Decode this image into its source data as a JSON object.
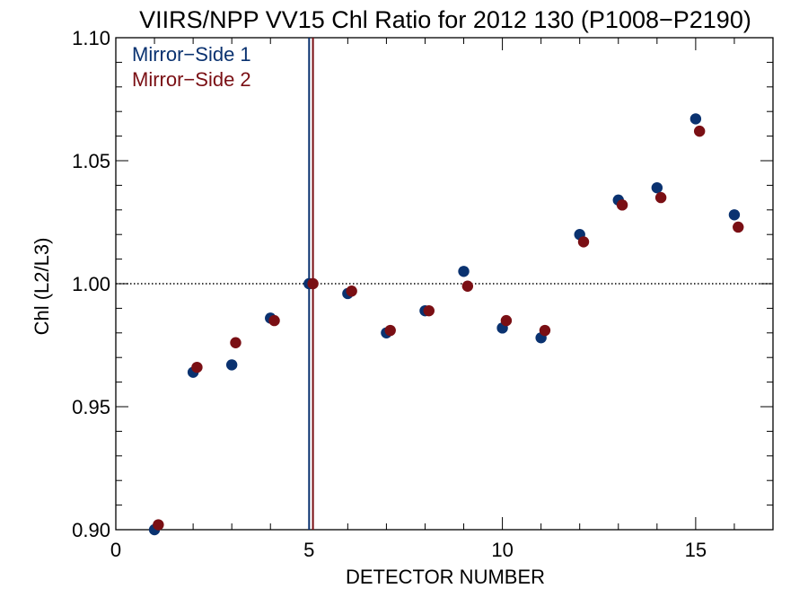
{
  "chart_data": {
    "type": "scatter",
    "title": "VIIRS/NPP VV15 Chl Ratio for 2012 130 (P1008−P2190)",
    "xlabel": "DETECTOR NUMBER",
    "ylabel": "Chl (L2/L3)",
    "xlim": [
      0,
      17
    ],
    "ylim": [
      0.9,
      1.1
    ],
    "x_ticks": [
      {
        "value": 0,
        "label": "0"
      },
      {
        "value": 5,
        "label": "5"
      },
      {
        "value": 10,
        "label": "10"
      },
      {
        "value": 15,
        "label": "15"
      }
    ],
    "y_ticks": [
      {
        "value": 0.9,
        "label": "0.90"
      },
      {
        "value": 0.95,
        "label": "0.95"
      },
      {
        "value": 1.0,
        "label": "1.00"
      },
      {
        "value": 1.05,
        "label": "1.05"
      },
      {
        "value": 1.1,
        "label": "1.10"
      }
    ],
    "reference_line_y": 1.0,
    "legend_placement": "top-left",
    "series": [
      {
        "name": "Mirror−Side 1",
        "color": "#0a3270",
        "vline_x": 5,
        "x": [
          1,
          2,
          3,
          4,
          5,
          6,
          7,
          8,
          9,
          10,
          11,
          12,
          13,
          14,
          15,
          16
        ],
        "values": [
          0.9,
          0.964,
          0.967,
          0.986,
          1.0,
          0.996,
          0.98,
          0.989,
          1.005,
          0.982,
          0.978,
          1.02,
          1.034,
          1.039,
          1.067,
          1.028
        ]
      },
      {
        "name": "Mirror−Side 2",
        "color": "#7a0f14",
        "vline_x": 5.1,
        "x": [
          1.1,
          2.1,
          3.1,
          4.1,
          5.1,
          6.1,
          7.1,
          8.1,
          9.1,
          10.1,
          11.1,
          12.1,
          13.1,
          14.1,
          15.1,
          16.1
        ],
        "values": [
          0.902,
          0.966,
          0.976,
          0.985,
          1.0,
          0.997,
          0.981,
          0.989,
          0.999,
          0.985,
          0.981,
          1.017,
          1.032,
          1.035,
          1.062,
          1.023
        ]
      }
    ]
  }
}
